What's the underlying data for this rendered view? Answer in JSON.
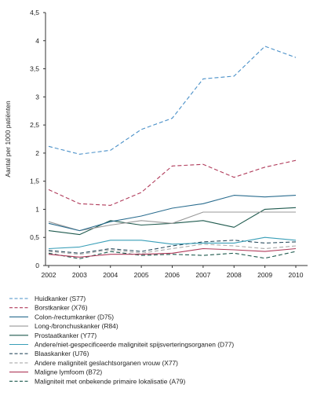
{
  "chart_data": {
    "type": "line",
    "title": "",
    "xlabel": "",
    "ylabel": "Aantal per 1000 patiënten",
    "ylim": [
      0,
      4.5
    ],
    "yticks": [
      "0",
      "0,5",
      "1",
      "1,5",
      "2",
      "2,5",
      "3",
      "3,5",
      "4",
      "4,5"
    ],
    "x": [
      "2002",
      "2003",
      "2004",
      "2005",
      "2006",
      "2007",
      "2008",
      "2009",
      "2010"
    ],
    "grid": false,
    "legend_position": "bottom",
    "series": [
      {
        "name": "Huidkanker (S77)",
        "color": "#4a90c8",
        "dash": "dashed",
        "values": [
          2.12,
          1.98,
          2.05,
          2.42,
          2.62,
          3.32,
          3.37,
          3.9,
          3.7
        ]
      },
      {
        "name": "Borstkanker (X76)",
        "color": "#b03a5a",
        "dash": "dashed",
        "values": [
          1.35,
          1.1,
          1.07,
          1.3,
          1.77,
          1.8,
          1.57,
          1.75,
          1.87
        ]
      },
      {
        "name": "Colon-/rectumkanker (D75)",
        "color": "#2b6d8f",
        "dash": "solid",
        "values": [
          0.75,
          0.62,
          0.78,
          0.88,
          1.02,
          1.1,
          1.25,
          1.22,
          1.25
        ]
      },
      {
        "name": "Long-/bronchuskanker (R84)",
        "color": "#999999",
        "dash": "solid",
        "values": [
          0.78,
          0.62,
          0.72,
          0.8,
          0.75,
          0.95,
          0.95,
          0.95,
          0.95
        ]
      },
      {
        "name": "Prostaatkanker (Y77)",
        "color": "#1f5a4e",
        "dash": "solid",
        "values": [
          0.62,
          0.55,
          0.8,
          0.72,
          0.75,
          0.8,
          0.68,
          1.0,
          1.03
        ]
      },
      {
        "name": "Andere/niet-gespecificeerde maligniteit spijsverteringsorganen (D77)",
        "color": "#3a9fb8",
        "dash": "solid",
        "values": [
          0.3,
          0.33,
          0.45,
          0.45,
          0.38,
          0.4,
          0.4,
          0.5,
          0.45
        ]
      },
      {
        "name": "Blaaskanker (U76)",
        "color": "#2d4f60",
        "dash": "dashed",
        "values": [
          0.27,
          0.22,
          0.3,
          0.25,
          0.35,
          0.42,
          0.45,
          0.4,
          0.42
        ]
      },
      {
        "name": "Andere maligniteit geslachtsorganen vrouw (X77)",
        "color": "#aaaaaa",
        "dash": "dashed",
        "values": [
          0.25,
          0.2,
          0.28,
          0.22,
          0.3,
          0.38,
          0.35,
          0.3,
          0.35
        ]
      },
      {
        "name": "Maligne lymfoom (B72)",
        "color": "#b03a5a",
        "dash": "solid",
        "values": [
          0.2,
          0.15,
          0.2,
          0.2,
          0.22,
          0.3,
          0.28,
          0.25,
          0.3
        ]
      },
      {
        "name": "Maligniteit met onbekende primaire lokalisatie (A79)",
        "color": "#1f5a4e",
        "dash": "dashed",
        "values": [
          0.22,
          0.12,
          0.25,
          0.18,
          0.2,
          0.18,
          0.22,
          0.13,
          0.25
        ]
      }
    ]
  }
}
